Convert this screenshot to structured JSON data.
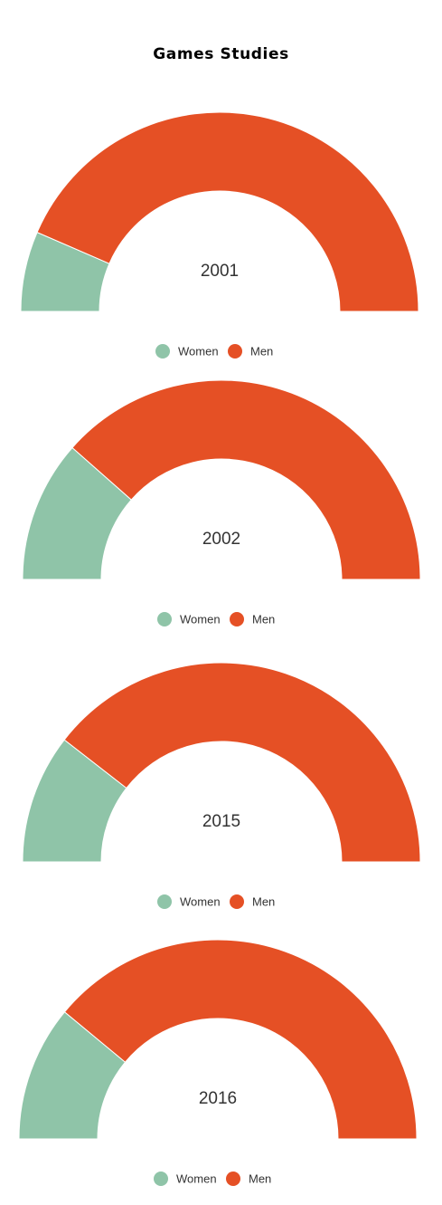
{
  "page": {
    "title": "Games Studies"
  },
  "colors": {
    "women": "#8fc4a8",
    "men": "#e55025",
    "separator": "#ffffff"
  },
  "chart_data": [
    {
      "type": "pie",
      "variant": "semi-donut",
      "label": "2001",
      "categories": [
        "Women",
        "Men"
      ],
      "values": [
        13,
        87
      ],
      "legend": [
        "Women",
        "Men"
      ],
      "legend_position": "bottom"
    },
    {
      "type": "pie",
      "variant": "semi-donut",
      "label": "2002",
      "categories": [
        "Women",
        "Men"
      ],
      "values": [
        23,
        77
      ],
      "legend": [
        "Women",
        "Men"
      ],
      "legend_position": "bottom"
    },
    {
      "type": "pie",
      "variant": "semi-donut",
      "label": "2015",
      "categories": [
        "Women",
        "Men"
      ],
      "values": [
        21,
        79
      ],
      "legend": [
        "Women",
        "Men"
      ],
      "legend_position": "bottom"
    },
    {
      "type": "pie",
      "variant": "semi-donut",
      "label": "2016",
      "categories": [
        "Women",
        "Men"
      ],
      "values": [
        22,
        78
      ],
      "legend": [
        "Women",
        "Men"
      ],
      "legend_position": "bottom"
    }
  ]
}
